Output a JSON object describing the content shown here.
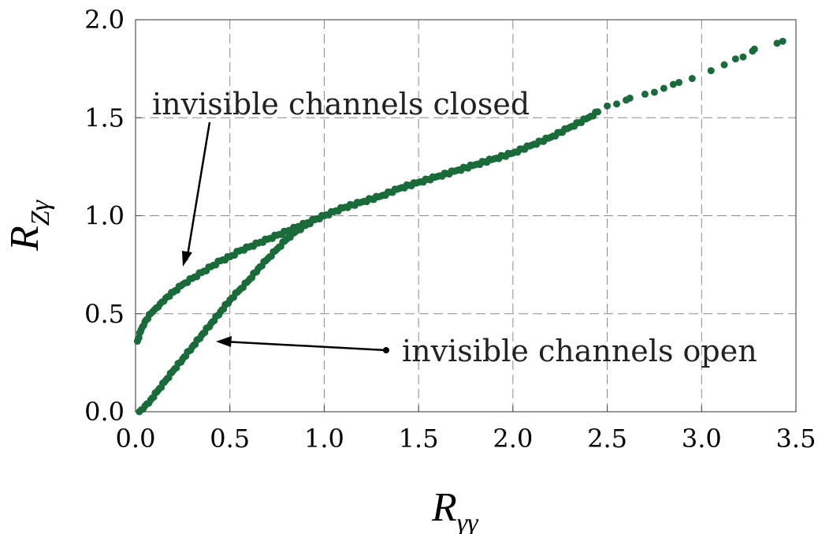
{
  "chart_data": {
    "type": "scatter",
    "xlabel": "R",
    "xlabel_sub": "γγ",
    "ylabel": "R",
    "ylabel_sub": "Zγ",
    "xlim": [
      0,
      3.5
    ],
    "ylim": [
      0,
      2.0
    ],
    "xticks": [
      "0.0",
      "0.5",
      "1.0",
      "1.5",
      "2.0",
      "2.5",
      "3.0",
      "3.5"
    ],
    "yticks": [
      "0.0",
      "0.5",
      "1.0",
      "1.5",
      "2.0"
    ],
    "grid": true,
    "marker_color": "#1a6b3a",
    "series": [
      {
        "points": [
          [
            0.01,
            0.36
          ],
          [
            0.03,
            0.42
          ],
          [
            0.05,
            0.46
          ],
          [
            0.08,
            0.5
          ],
          [
            0.1,
            0.52
          ],
          [
            0.13,
            0.55
          ],
          [
            0.16,
            0.58
          ],
          [
            0.2,
            0.61
          ],
          [
            0.25,
            0.65
          ],
          [
            0.3,
            0.68
          ],
          [
            0.35,
            0.71
          ],
          [
            0.4,
            0.74
          ],
          [
            0.45,
            0.77
          ],
          [
            0.5,
            0.79
          ],
          [
            0.55,
            0.82
          ],
          [
            0.6,
            0.84
          ],
          [
            0.65,
            0.86
          ],
          [
            0.7,
            0.88
          ],
          [
            0.75,
            0.9
          ],
          [
            0.8,
            0.92
          ],
          [
            0.85,
            0.94
          ],
          [
            0.9,
            0.96
          ],
          [
            0.95,
            0.98
          ],
          [
            1.0,
            1.0
          ]
        ]
      },
      {
        "points": [
          [
            0.02,
            0.0
          ],
          [
            0.05,
            0.03
          ],
          [
            0.08,
            0.06
          ],
          [
            0.12,
            0.11
          ],
          [
            0.16,
            0.16
          ],
          [
            0.2,
            0.21
          ],
          [
            0.25,
            0.27
          ],
          [
            0.3,
            0.33
          ],
          [
            0.35,
            0.39
          ],
          [
            0.4,
            0.45
          ],
          [
            0.45,
            0.51
          ],
          [
            0.5,
            0.57
          ],
          [
            0.55,
            0.62
          ],
          [
            0.6,
            0.67
          ],
          [
            0.65,
            0.73
          ],
          [
            0.7,
            0.78
          ],
          [
            0.75,
            0.83
          ],
          [
            0.8,
            0.88
          ],
          [
            0.85,
            0.92
          ],
          [
            0.9,
            0.95
          ],
          [
            0.95,
            0.98
          ],
          [
            1.0,
            1.0
          ]
        ]
      },
      {
        "points": [
          [
            1.0,
            1.0
          ],
          [
            1.05,
            1.02
          ],
          [
            1.1,
            1.04
          ],
          [
            1.2,
            1.07
          ],
          [
            1.3,
            1.1
          ],
          [
            1.4,
            1.14
          ],
          [
            1.5,
            1.17
          ],
          [
            1.6,
            1.2
          ],
          [
            1.7,
            1.23
          ],
          [
            1.8,
            1.26
          ],
          [
            1.9,
            1.29
          ],
          [
            2.0,
            1.32
          ],
          [
            2.1,
            1.36
          ],
          [
            2.2,
            1.4
          ],
          [
            2.3,
            1.45
          ],
          [
            2.4,
            1.5
          ],
          [
            2.45,
            1.53
          ],
          [
            2.5,
            1.56
          ],
          [
            2.55,
            1.57
          ],
          [
            2.6,
            1.59
          ],
          [
            2.62,
            1.6
          ],
          [
            2.7,
            1.62
          ],
          [
            2.75,
            1.63
          ],
          [
            2.8,
            1.65
          ],
          [
            2.85,
            1.67
          ],
          [
            2.88,
            1.68
          ],
          [
            2.95,
            1.7
          ],
          [
            3.05,
            1.74
          ],
          [
            3.12,
            1.77
          ],
          [
            3.18,
            1.8
          ],
          [
            3.22,
            1.81
          ],
          [
            3.27,
            1.84
          ],
          [
            3.28,
            1.85
          ],
          [
            3.4,
            1.88
          ],
          [
            3.43,
            1.89
          ]
        ]
      }
    ],
    "annotations": [
      {
        "text": "invisible channels closed",
        "arrow_to": [
          0.25,
          0.74
        ]
      },
      {
        "text": "invisible channels open",
        "arrow_to": [
          0.43,
          0.37
        ]
      }
    ]
  }
}
